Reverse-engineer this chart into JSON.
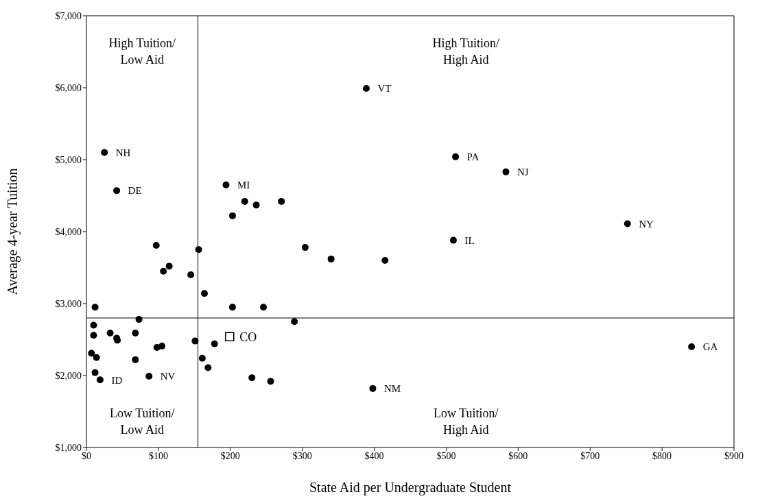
{
  "chart_data": {
    "type": "scatter",
    "xlabel": "State Aid per Undergraduate Student",
    "ylabel": "Average 4-year Tuition",
    "xlim": [
      0,
      900
    ],
    "ylim": [
      1000,
      7000
    ],
    "xticks": [
      {
        "value": 0,
        "label": "$0"
      },
      {
        "value": 100,
        "label": "$100"
      },
      {
        "value": 200,
        "label": "$200"
      },
      {
        "value": 300,
        "label": "$300"
      },
      {
        "value": 400,
        "label": "$400"
      },
      {
        "value": 500,
        "label": "$500"
      },
      {
        "value": 600,
        "label": "$600"
      },
      {
        "value": 700,
        "label": "$700"
      },
      {
        "value": 800,
        "label": "$800"
      },
      {
        "value": 900,
        "label": "$900"
      }
    ],
    "yticks": [
      {
        "value": 1000,
        "label": "$1,000"
      },
      {
        "value": 2000,
        "label": "$2,000"
      },
      {
        "value": 3000,
        "label": "$3,000"
      },
      {
        "value": 4000,
        "label": "$4,000"
      },
      {
        "value": 5000,
        "label": "$5,000"
      },
      {
        "value": 6000,
        "label": "$6,000"
      },
      {
        "value": 7000,
        "label": "$7,000"
      }
    ],
    "grid": false,
    "series": [
      {
        "color": "#000000",
        "marker": "circle",
        "x": [
          25,
          42,
          389,
          513,
          583,
          752,
          510,
          841,
          398,
          194,
          12,
          10,
          10,
          7,
          14,
          12,
          19,
          33,
          42,
          43,
          73,
          68,
          68,
          87,
          98,
          105,
          151,
          178,
          161,
          169,
          230,
          256,
          203,
          246,
          289,
          164,
          220,
          236,
          271,
          203,
          97,
          156,
          115,
          107,
          145,
          304,
          340,
          415
        ],
        "values": [
          5100,
          4570,
          5990,
          5040,
          4830,
          4110,
          3880,
          2400,
          1820,
          4650,
          2950,
          2700,
          2560,
          2310,
          2250,
          2040,
          1940,
          2590,
          2520,
          2490,
          2780,
          2590,
          2220,
          1990,
          2390,
          2410,
          2480,
          2440,
          2240,
          2110,
          1970,
          1920,
          2950,
          2950,
          2750,
          3140,
          4420,
          4370,
          4420,
          4220,
          3810,
          3750,
          3520,
          3450,
          3400,
          3780,
          3620,
          3600
        ],
        "value_labels": [
          "NH",
          "DE",
          "VT",
          "PA",
          "NJ",
          "NY",
          "IL",
          "GA",
          "NM",
          "MI",
          null,
          null,
          null,
          null,
          null,
          null,
          "ID",
          null,
          null,
          null,
          null,
          null,
          null,
          "NV",
          null,
          null,
          null,
          null,
          null,
          null,
          null,
          null,
          null,
          null,
          null,
          null,
          null,
          null,
          null,
          null,
          null,
          null,
          null,
          null,
          null,
          null,
          null,
          null
        ]
      },
      {
        "color": "#000000",
        "marker": "square",
        "x": [
          199
        ],
        "values": [
          2540
        ],
        "value_labels": [
          "CO"
        ]
      }
    ],
    "ref_lines": [
      {
        "axis": "x",
        "value": 155,
        "color": "#000000"
      },
      {
        "axis": "y",
        "value": 2800,
        "color": "#000000"
      }
    ],
    "annotations": [
      "High Tuition/\nLow Aid",
      "High Tuition/\nHigh Aid",
      "Low Tuition/\nLow Aid",
      "Low Tuition/\nHigh Aid"
    ]
  }
}
